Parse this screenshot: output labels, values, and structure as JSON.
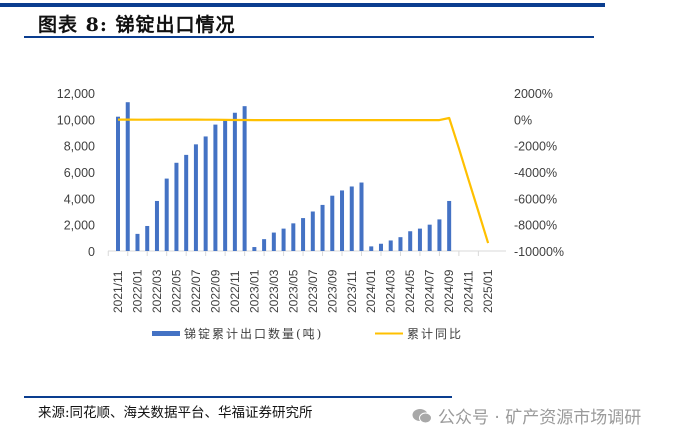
{
  "header": {
    "title": "图表 8:  锑锭出口情况"
  },
  "footer": {
    "source": "来源:同花顺、海关数据平台、华福证券研究所",
    "watermark": "公众号 · 矿产资源市场调研",
    "watermark_icon": "wechat-icon"
  },
  "colors": {
    "bar": "#4472c4",
    "line": "#ffc000",
    "rule": "#0a3d8f"
  },
  "legend": {
    "bar_label": "锑锭累计出口数量(吨)",
    "line_label": "累计同比"
  },
  "chart_data": {
    "type": "bar+line",
    "title": "锑锭出口情况",
    "xlabel": "",
    "ylabel_left": "锑锭累计出口数量(吨)",
    "ylabel_right": "累计同比",
    "ylim_left": [
      0,
      12000
    ],
    "ylim_right": [
      -10000,
      2000
    ],
    "left_ticks": [
      "0",
      "2,000",
      "4,000",
      "6,000",
      "8,000",
      "10,000",
      "12,000"
    ],
    "right_ticks": [
      "-10000%",
      "-8000%",
      "-6000%",
      "-4000%",
      "-2000%",
      "0%",
      "2000%"
    ],
    "x_tick_labels": [
      "2021/11",
      "2022/01",
      "2022/03",
      "2022/05",
      "2022/07",
      "2022/09",
      "2022/11",
      "2023/01",
      "2023/03",
      "2023/05",
      "2023/07",
      "2023/09",
      "2023/11",
      "2024/01",
      "2024/03",
      "2024/05",
      "2024/07",
      "2024/09",
      "2024/11",
      "2025/01"
    ],
    "categories": [
      "2021/11",
      "2021/12",
      "2022/01",
      "2022/02",
      "2022/03",
      "2022/04",
      "2022/05",
      "2022/06",
      "2022/07",
      "2022/08",
      "2022/09",
      "2022/10",
      "2022/11",
      "2022/12",
      "2023/01",
      "2023/02",
      "2023/03",
      "2023/04",
      "2023/05",
      "2023/06",
      "2023/07",
      "2023/08",
      "2023/09",
      "2023/10",
      "2023/11",
      "2023/12",
      "2024/01",
      "2024/02",
      "2024/03",
      "2024/04",
      "2024/05",
      "2024/06",
      "2024/07",
      "2024/08",
      "2024/09",
      "2024/10",
      "2024/11",
      "2024/12",
      "2025/01"
    ],
    "series": [
      {
        "name": "锑锭累计出口数量(吨)",
        "type": "bar",
        "axis": "left",
        "values": [
          10200,
          11300,
          1300,
          1900,
          3800,
          5500,
          6700,
          7300,
          8100,
          8700,
          9600,
          10000,
          10500,
          11000,
          300,
          900,
          1400,
          1700,
          2100,
          2500,
          3000,
          3500,
          4200,
          4600,
          4900,
          5200,
          350,
          550,
          800,
          1050,
          1500,
          1700,
          2000,
          2400,
          3800,
          null,
          null,
          null,
          null
        ]
      },
      {
        "name": "累计同比",
        "type": "line",
        "axis": "right",
        "values": [
          -20,
          -20,
          -30,
          -30,
          -20,
          -20,
          -20,
          -20,
          -20,
          -30,
          -30,
          -40,
          -50,
          -50,
          -60,
          -60,
          -60,
          -60,
          -60,
          -60,
          -60,
          -60,
          -60,
          -60,
          -60,
          -60,
          -60,
          -60,
          -60,
          -60,
          -60,
          -60,
          -60,
          -60,
          100,
          -2200,
          -4600,
          -7000,
          -9400
        ]
      }
    ],
    "grid": false,
    "legend_position": "bottom"
  }
}
